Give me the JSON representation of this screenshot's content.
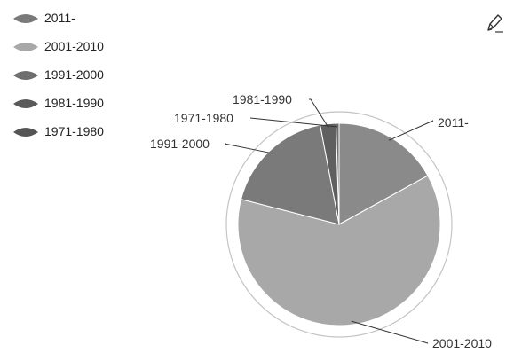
{
  "chart_data": {
    "type": "pie",
    "categories": [
      "2011-",
      "2001-2010",
      "1991-2000",
      "1981-1990",
      "1971-1980"
    ],
    "values": [
      17,
      62,
      18,
      2.5,
      0.5
    ],
    "colors": [
      "#8a8a8a",
      "#a8a8a8",
      "#7a7a7a",
      "#5f5f5f",
      "#6e6e6e"
    ],
    "title": "",
    "legend_position": "top-left",
    "data_labels": true
  },
  "legend": {
    "items": [
      {
        "label": "2011-",
        "color": "#7a7a7a"
      },
      {
        "label": "2001-2010",
        "color": "#a8a8a8"
      },
      {
        "label": "1991-2000",
        "color": "#6e6e6e"
      },
      {
        "label": "1981-1990",
        "color": "#5a5a5a"
      },
      {
        "label": "1971-1980",
        "color": "#555555"
      }
    ]
  },
  "toolbar": {
    "edit_icon": "pencil-icon"
  }
}
